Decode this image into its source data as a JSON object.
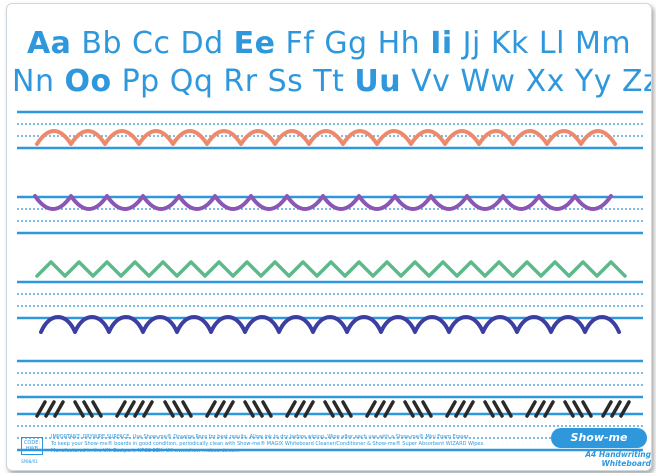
{
  "alphabet": {
    "row1": [
      {
        "text": "Aa",
        "bold": true
      },
      {
        "text": "Bb",
        "bold": false
      },
      {
        "text": "Cc",
        "bold": false
      },
      {
        "text": "Dd",
        "bold": false
      },
      {
        "text": "Ee",
        "bold": true
      },
      {
        "text": "Ff",
        "bold": false
      },
      {
        "text": "Gg",
        "bold": false
      },
      {
        "text": "Hh",
        "bold": false
      },
      {
        "text": "Ii",
        "bold": true
      },
      {
        "text": "Jj",
        "bold": false
      },
      {
        "text": "Kk",
        "bold": false
      },
      {
        "text": "Ll",
        "bold": false
      },
      {
        "text": "Mm",
        "bold": false
      }
    ],
    "row2": [
      {
        "text": "Nn",
        "bold": false
      },
      {
        "text": "Oo",
        "bold": true
      },
      {
        "text": "Pp",
        "bold": false
      },
      {
        "text": "Qq",
        "bold": false
      },
      {
        "text": "Rr",
        "bold": false
      },
      {
        "text": "Ss",
        "bold": false
      },
      {
        "text": "Tt",
        "bold": false
      },
      {
        "text": "Uu",
        "bold": true
      },
      {
        "text": "Vv",
        "bold": false
      },
      {
        "text": "Ww",
        "bold": false
      },
      {
        "text": "Xx",
        "bold": false
      },
      {
        "text": "Yy",
        "bold": false
      },
      {
        "text": "Zz",
        "bold": false
      }
    ]
  },
  "colors": {
    "brand_blue": "#2f98dd",
    "stroke_orange": "#ee8a6c",
    "stroke_purple": "#8a57b3",
    "stroke_green": "#5cb98a",
    "stroke_navy": "#3c3fa2",
    "stroke_black": "#2a2a2a"
  },
  "practice_patterns": [
    "scallop-arches",
    "scallop-cups",
    "zigzag",
    "waves",
    "slashes"
  ],
  "footer": {
    "code_label": "CODE:",
    "code_value": "HWB",
    "note_line1": "IMPORTANT: DRYWIPE SURFACE. Use Show-me® Drywipe Pens for best results. Allow ink to dry before wiping. Wipe after each use with a Show-me® Mini Foam Eraser.",
    "note_line2": "To keep your Show-me® boards in good condition, periodically clean with Show-me® MAGIX Whiteboard Cleaner/Conditioner & Show-me® Super Absorbent WIZARD Wipes.",
    "note_line3": "Manufactured in the UK. Eastport, NR32 2EX, UK   www.show-meboards.com",
    "small_code": "SPB8/01",
    "right_code": "1/1/00",
    "logo_text": "Show-me board®",
    "product_name": "A4 Handwriting Whiteboard"
  }
}
